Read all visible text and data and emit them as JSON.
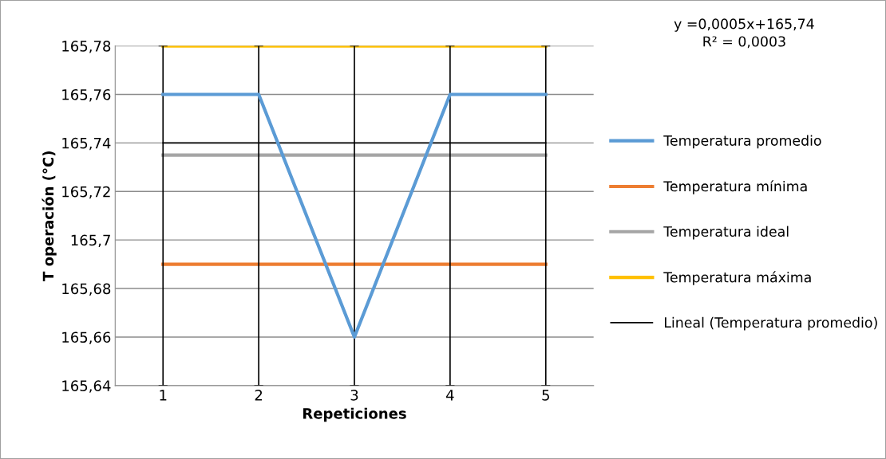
{
  "chart_data": {
    "type": "line",
    "xlabel": "Repeticiones",
    "ylabel": "T operación (°C)",
    "categories": [
      "1",
      "2",
      "3",
      "4",
      "5"
    ],
    "series": [
      {
        "name": "Temperatura promedio",
        "color": "#5b9bd5",
        "values": [
          165.76,
          165.76,
          165.66,
          165.76,
          165.76
        ],
        "errors": [
          [
            165.64,
            165.78
          ],
          [
            165.64,
            165.78
          ],
          [
            165.64,
            165.78
          ],
          [
            165.64,
            165.78
          ],
          [
            165.64,
            165.78
          ]
        ]
      },
      {
        "name": "Temperatura mínima",
        "color": "#ed7d31",
        "values": [
          165.69,
          165.69,
          165.69,
          165.69,
          165.69
        ]
      },
      {
        "name": "Temperatura ideal",
        "color": "#a5a5a5",
        "values": [
          165.735,
          165.735,
          165.735,
          165.735,
          165.735
        ]
      },
      {
        "name": "Temperatura máxima",
        "color": "#ffc000",
        "values": [
          165.78,
          165.78,
          165.78,
          165.78,
          165.78
        ]
      },
      {
        "name": "Lineal (Temperatura promedio)",
        "color": "#000000",
        "values": [
          165.74,
          165.74,
          165.74,
          165.74,
          165.74
        ]
      }
    ],
    "ylim": [
      165.64,
      165.78
    ],
    "yticks": [
      {
        "value": 165.64,
        "label": "165,64"
      },
      {
        "value": 165.66,
        "label": "165,66"
      },
      {
        "value": 165.68,
        "label": "165,68"
      },
      {
        "value": 165.7,
        "label": "165,7"
      },
      {
        "value": 165.72,
        "label": "165,72"
      },
      {
        "value": 165.74,
        "label": "165,74"
      },
      {
        "value": 165.76,
        "label": "165,76"
      },
      {
        "value": 165.78,
        "label": "165,78"
      }
    ],
    "annotations": [
      "y =0,0005x+165,74\nR² = 0,0003"
    ],
    "grid": "y",
    "legend": "right",
    "marker": "none",
    "line_style": "solid"
  }
}
